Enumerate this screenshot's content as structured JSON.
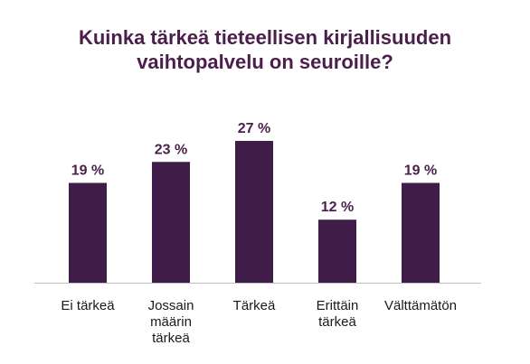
{
  "chart_data": {
    "type": "bar",
    "title_lines": [
      "Kuinka tärkeä tieteellisen kirjallisuuden",
      "vaihtopalvelu on seuroille?"
    ],
    "categories": [
      [
        "Ei tärkeä"
      ],
      [
        "Jossain",
        "määrin",
        "tärkeä"
      ],
      [
        "Tärkeä"
      ],
      [
        "Erittäin",
        "tärkeä"
      ],
      [
        "Välttämätön"
      ]
    ],
    "values": [
      19,
      23,
      27,
      12,
      19
    ],
    "value_labels": [
      "19 %",
      "23 %",
      "27 %",
      "12 %",
      "19 %"
    ],
    "ylim": [
      0,
      27
    ],
    "grid": false,
    "legend": "none",
    "colors": {
      "bar": "#401c48",
      "title": "#4a1f4c",
      "axis": "#bfbfbf",
      "text": "#1a1a1a"
    }
  }
}
